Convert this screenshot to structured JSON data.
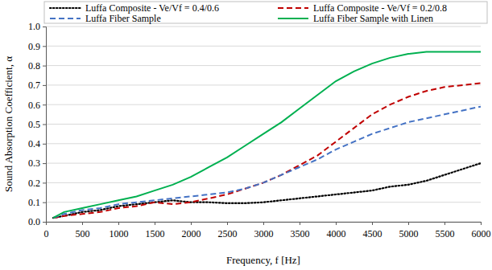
{
  "chart_data": {
    "type": "line",
    "x_label": "Frequency, f [Hz]",
    "y_label": "Sound Absorption Coefficient, α",
    "x": [
      100,
      250,
      500,
      750,
      1000,
      1250,
      1500,
      1750,
      2000,
      2250,
      2500,
      2750,
      3000,
      3250,
      3500,
      3750,
      4000,
      4250,
      4500,
      4750,
      5000,
      5250,
      5500,
      5750,
      6000
    ],
    "series": [
      {
        "name": "Luffa Composite - Ve/Vf = 0.4/0.6",
        "color": "#000000",
        "line_style": "dotted",
        "values": [
          0.02,
          0.03,
          0.05,
          0.06,
          0.08,
          0.09,
          0.1,
          0.11,
          0.1,
          0.1,
          0.095,
          0.095,
          0.1,
          0.11,
          0.12,
          0.13,
          0.14,
          0.15,
          0.16,
          0.18,
          0.19,
          0.21,
          0.24,
          0.27,
          0.3
        ]
      },
      {
        "name": "Luffa Composite - Ve/Vf = 0.2/0.8",
        "color": "#c00000",
        "line_style": "dashed",
        "values": [
          0.02,
          0.03,
          0.04,
          0.05,
          0.07,
          0.08,
          0.1,
          0.09,
          0.1,
          0.12,
          0.14,
          0.17,
          0.2,
          0.24,
          0.29,
          0.34,
          0.41,
          0.48,
          0.55,
          0.6,
          0.64,
          0.67,
          0.69,
          0.7,
          0.71
        ]
      },
      {
        "name": "Luffa Fiber Sample",
        "color": "#4472c4",
        "line_style": "dashed",
        "values": [
          0.02,
          0.04,
          0.06,
          0.07,
          0.09,
          0.1,
          0.11,
          0.12,
          0.13,
          0.14,
          0.15,
          0.17,
          0.2,
          0.24,
          0.28,
          0.32,
          0.37,
          0.41,
          0.45,
          0.48,
          0.51,
          0.53,
          0.55,
          0.57,
          0.59
        ]
      },
      {
        "name": "Luffa Fiber Sample with Linen",
        "color": "#00b050",
        "line_style": "solid",
        "values": [
          0.02,
          0.05,
          0.07,
          0.09,
          0.11,
          0.13,
          0.16,
          0.19,
          0.23,
          0.28,
          0.33,
          0.39,
          0.45,
          0.51,
          0.58,
          0.65,
          0.72,
          0.77,
          0.81,
          0.84,
          0.86,
          0.87,
          0.87,
          0.87,
          0.87
        ]
      }
    ],
    "xlim": [
      0,
      6000
    ],
    "xticks": [
      0,
      500,
      1000,
      1500,
      2000,
      2500,
      3000,
      3500,
      4000,
      4500,
      5000,
      5500,
      6000
    ],
    "ylim": [
      0,
      1
    ],
    "yticks": [
      {
        "value": 0,
        "label": "0.0"
      },
      0.1,
      0.2,
      0.3,
      0.4,
      0.5,
      0.6,
      0.7,
      0.8,
      0.9,
      {
        "value": 1,
        "label": "1.0"
      }
    ],
    "grid": true,
    "legend": "top"
  }
}
